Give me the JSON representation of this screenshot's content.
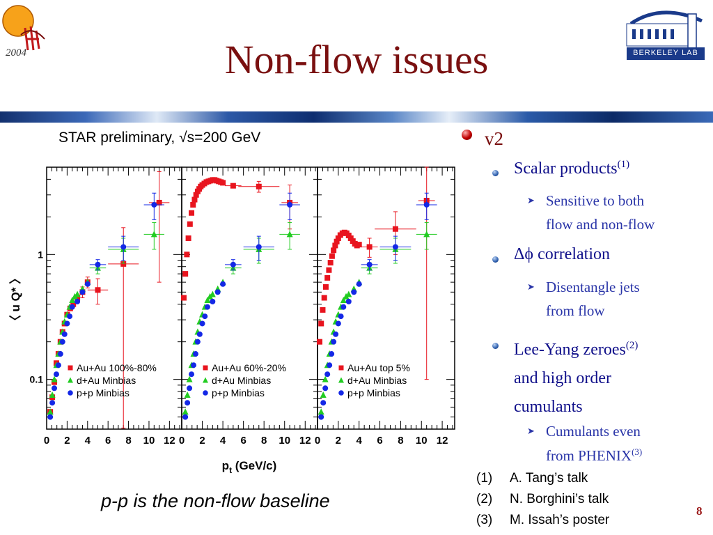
{
  "slide": {
    "title": "Non-flow issues",
    "page_number": "8",
    "logo_left": {
      "year": "2004"
    },
    "logo_right": {
      "text": "BERKELEY LAB"
    }
  },
  "chart": {
    "caption": "STAR preliminary, √s=200 GeV",
    "baseline_note": "p-p is the non-flow baseline"
  },
  "bullets": {
    "main": "v2",
    "items": [
      {
        "label": "Scalar products",
        "sup": "(1)",
        "sub": [
          "Sensitive to both",
          "flow and non-flow"
        ]
      },
      {
        "label": "Δϕ correlation",
        "sup": "",
        "sub": [
          "Disentangle jets",
          "from flow"
        ]
      },
      {
        "label_lines": [
          "Lee-Yang zeroes",
          "and high order",
          "cumulants"
        ],
        "sup": "(2)",
        "sub": [
          "Cumulants even",
          "from PHENIX"
        ],
        "sub_sup": "(3)"
      }
    ]
  },
  "references": [
    {
      "num": "(1)",
      "text": "A. Tang’s talk"
    },
    {
      "num": "(2)",
      "text": "N. Borghini’s talk"
    },
    {
      "num": "(3)",
      "text": "M. Issah’s poster"
    }
  ],
  "chart_data": {
    "type": "scatter",
    "ylabel": "〈 u Q* 〉",
    "xlabel": "p",
    "xlabel_sub": "t",
    "xlabel_unit": "(GeV/c)",
    "xlim": [
      0,
      13.2
    ],
    "ylim": [
      0.04,
      5.0
    ],
    "yscale": "log",
    "ytick_labels": [
      "0.1",
      "1"
    ],
    "ytick_values": [
      0.1,
      1
    ],
    "xtick_labels": [
      "0",
      "2",
      "4",
      "6",
      "8",
      "10",
      "12"
    ],
    "colors": {
      "auau": "#e8141e",
      "dau": "#22cc22",
      "pp": "#1428e6"
    },
    "panels": [
      {
        "series": [
          {
            "name": "Au+Au 100%-80%",
            "marker": "square",
            "color": "#e8141e",
            "x": [
              0.35,
              0.55,
              0.75,
              0.95,
              1.15,
              1.35,
              1.55,
              1.75,
              2.0,
              2.3,
              2.6,
              3.0,
              3.5,
              4.0,
              5.0,
              7.5,
              11.0
            ],
            "y": [
              0.055,
              0.072,
              0.095,
              0.135,
              0.16,
              0.2,
              0.24,
              0.28,
              0.33,
              0.37,
              0.4,
              0.45,
              0.5,
              0.6,
              0.52,
              0.84,
              2.6
            ],
            "xerr": [
              0,
              0,
              0,
              0,
              0,
              0,
              0,
              0,
              0,
              0,
              0,
              0,
              0,
              0,
              1.0,
              1.5,
              1.0
            ],
            "yerr": [
              0,
              0,
              0,
              0,
              0,
              0,
              0,
              0,
              0,
              0,
              0,
              0,
              0.05,
              0.06,
              0.12,
              0.8,
              2.0
            ]
          },
          {
            "name": "d+Au Minbias",
            "marker": "triangle",
            "color": "#22cc22",
            "x": [
              0.35,
              0.55,
              0.75,
              0.95,
              1.15,
              1.35,
              1.55,
              1.75,
              2.0,
              2.25,
              2.5,
              2.75,
              3.0,
              3.5,
              4.0,
              5.0,
              7.5,
              10.5
            ],
            "y": [
              0.055,
              0.075,
              0.1,
              0.13,
              0.16,
              0.2,
              0.24,
              0.29,
              0.33,
              0.38,
              0.43,
              0.46,
              0.48,
              0.53,
              0.6,
              0.78,
              1.1,
              1.45
            ],
            "xerr": [
              0,
              0,
              0,
              0,
              0,
              0,
              0,
              0,
              0,
              0,
              0,
              0,
              0,
              0,
              0,
              0.8,
              1.5,
              1.0
            ],
            "yerr": [
              0,
              0,
              0,
              0,
              0,
              0,
              0,
              0,
              0,
              0,
              0,
              0,
              0,
              0,
              0,
              0.08,
              0.25,
              0.35
            ]
          },
          {
            "name": "p+p Minbias",
            "marker": "circle",
            "color": "#1428e6",
            "x": [
              0.35,
              0.55,
              0.75,
              0.95,
              1.15,
              1.35,
              1.55,
              1.75,
              2.0,
              2.25,
              2.5,
              3.0,
              3.5,
              4.0,
              5.0,
              7.5,
              10.5
            ],
            "y": [
              0.05,
              0.065,
              0.085,
              0.11,
              0.13,
              0.16,
              0.2,
              0.23,
              0.28,
              0.32,
              0.38,
              0.42,
              0.5,
              0.58,
              0.83,
              1.15,
              2.5
            ],
            "xerr": [
              0,
              0,
              0,
              0,
              0,
              0,
              0,
              0,
              0,
              0,
              0,
              0,
              0,
              0,
              0.8,
              1.5,
              1.0
            ],
            "yerr": [
              0,
              0,
              0,
              0,
              0,
              0,
              0,
              0,
              0,
              0,
              0,
              0,
              0,
              0,
              0.08,
              0.25,
              0.6
            ]
          }
        ]
      },
      {
        "series": [
          {
            "name": "Au+Au 60%-20%",
            "marker": "square",
            "color": "#e8141e",
            "x": [
              0.2,
              0.35,
              0.5,
              0.65,
              0.8,
              0.95,
              1.1,
              1.25,
              1.4,
              1.55,
              1.7,
              1.85,
              2.0,
              2.2,
              2.4,
              2.6,
              2.8,
              3.0,
              3.2,
              3.4,
              3.6,
              3.8,
              4.0,
              5.0,
              7.5,
              10.5
            ],
            "y": [
              0.45,
              0.7,
              1.0,
              1.35,
              1.75,
              2.15,
              2.5,
              2.75,
              3.0,
              3.2,
              3.35,
              3.5,
              3.6,
              3.7,
              3.8,
              3.85,
              3.9,
              3.95,
              3.95,
              3.9,
              3.85,
              3.8,
              3.75,
              3.55,
              3.5,
              2.6
            ],
            "xerr": [
              0,
              0,
              0,
              0,
              0,
              0,
              0,
              0,
              0,
              0,
              0,
              0,
              0,
              0,
              0,
              0,
              0,
              0,
              0,
              0,
              0,
              0,
              0,
              0.8,
              2.0,
              0.8
            ],
            "yerr": [
              0,
              0,
              0,
              0,
              0,
              0,
              0,
              0,
              0,
              0,
              0,
              0,
              0,
              0,
              0,
              0,
              0,
              0,
              0,
              0,
              0,
              0,
              0,
              0,
              0.35,
              1.0
            ]
          },
          {
            "name": "d+Au Minbias",
            "marker": "triangle",
            "color": "#22cc22",
            "x": [
              0.35,
              0.55,
              0.75,
              0.95,
              1.15,
              1.35,
              1.55,
              1.75,
              2.0,
              2.25,
              2.5,
              2.75,
              3.0,
              3.5,
              4.0,
              5.0,
              7.5,
              10.5
            ],
            "y": [
              0.055,
              0.075,
              0.1,
              0.13,
              0.16,
              0.2,
              0.24,
              0.29,
              0.33,
              0.38,
              0.43,
              0.46,
              0.48,
              0.53,
              0.6,
              0.78,
              1.1,
              1.45
            ],
            "xerr": [
              0,
              0,
              0,
              0,
              0,
              0,
              0,
              0,
              0,
              0,
              0,
              0,
              0,
              0,
              0,
              0.8,
              1.5,
              1.0
            ],
            "yerr": [
              0,
              0,
              0,
              0,
              0,
              0,
              0,
              0,
              0,
              0,
              0,
              0,
              0,
              0,
              0,
              0.08,
              0.25,
              0.35
            ]
          },
          {
            "name": "p+p Minbias",
            "marker": "circle",
            "color": "#1428e6",
            "x": [
              0.35,
              0.55,
              0.75,
              0.95,
              1.15,
              1.35,
              1.55,
              1.75,
              2.0,
              2.25,
              2.5,
              3.0,
              3.5,
              4.0,
              5.0,
              7.5,
              10.5
            ],
            "y": [
              0.05,
              0.065,
              0.085,
              0.11,
              0.13,
              0.16,
              0.2,
              0.23,
              0.28,
              0.32,
              0.38,
              0.42,
              0.5,
              0.58,
              0.83,
              1.15,
              2.5
            ],
            "xerr": [
              0,
              0,
              0,
              0,
              0,
              0,
              0,
              0,
              0,
              0,
              0,
              0,
              0,
              0,
              0.8,
              1.5,
              1.0
            ],
            "yerr": [
              0,
              0,
              0,
              0,
              0,
              0,
              0,
              0,
              0,
              0,
              0,
              0,
              0,
              0,
              0.08,
              0.25,
              0.6
            ]
          }
        ]
      },
      {
        "series": [
          {
            "name": "Au+Au top 5%",
            "marker": "square",
            "color": "#e8141e",
            "x": [
              0.2,
              0.35,
              0.5,
              0.65,
              0.8,
              0.95,
              1.1,
              1.25,
              1.4,
              1.55,
              1.7,
              1.85,
              2.0,
              2.2,
              2.4,
              2.6,
              2.8,
              3.0,
              3.2,
              3.4,
              3.6,
              3.8,
              4.0,
              5.0,
              7.5,
              10.5
            ],
            "y": [
              0.2,
              0.28,
              0.36,
              0.45,
              0.55,
              0.65,
              0.75,
              0.86,
              0.97,
              1.08,
              1.18,
              1.27,
              1.35,
              1.43,
              1.48,
              1.5,
              1.48,
              1.42,
              1.35,
              1.28,
              1.22,
              1.18,
              1.2,
              1.15,
              1.6,
              2.7
            ],
            "xerr": [
              0,
              0,
              0,
              0,
              0,
              0,
              0,
              0,
              0,
              0,
              0,
              0,
              0,
              0,
              0,
              0,
              0,
              0,
              0,
              0,
              0,
              0,
              0,
              0.8,
              2.0,
              0.8
            ],
            "yerr": [
              0,
              0,
              0,
              0,
              0,
              0,
              0,
              0,
              0,
              0,
              0,
              0,
              0,
              0,
              0,
              0,
              0,
              0,
              0,
              0,
              0,
              0,
              0,
              0.2,
              0.6,
              2.6
            ]
          },
          {
            "name": "d+Au Minbias",
            "marker": "triangle",
            "color": "#22cc22",
            "x": [
              0.35,
              0.55,
              0.75,
              0.95,
              1.15,
              1.35,
              1.55,
              1.75,
              2.0,
              2.25,
              2.5,
              2.75,
              3.0,
              3.5,
              4.0,
              5.0,
              7.5,
              10.5
            ],
            "y": [
              0.055,
              0.075,
              0.1,
              0.13,
              0.16,
              0.2,
              0.24,
              0.29,
              0.33,
              0.38,
              0.43,
              0.46,
              0.48,
              0.53,
              0.6,
              0.78,
              1.1,
              1.45
            ],
            "xerr": [
              0,
              0,
              0,
              0,
              0,
              0,
              0,
              0,
              0,
              0,
              0,
              0,
              0,
              0,
              0,
              0.8,
              1.5,
              1.0
            ],
            "yerr": [
              0,
              0,
              0,
              0,
              0,
              0,
              0,
              0,
              0,
              0,
              0,
              0,
              0,
              0,
              0,
              0.08,
              0.25,
              0.35
            ]
          },
          {
            "name": "p+p Minbias",
            "marker": "circle",
            "color": "#1428e6",
            "x": [
              0.35,
              0.55,
              0.75,
              0.95,
              1.15,
              1.35,
              1.55,
              1.75,
              2.0,
              2.25,
              2.5,
              3.0,
              3.5,
              4.0,
              5.0,
              7.5,
              10.5
            ],
            "y": [
              0.05,
              0.065,
              0.085,
              0.11,
              0.13,
              0.16,
              0.2,
              0.23,
              0.28,
              0.32,
              0.38,
              0.42,
              0.5,
              0.58,
              0.83,
              1.15,
              2.5
            ],
            "xerr": [
              0,
              0,
              0,
              0,
              0,
              0,
              0,
              0,
              0,
              0,
              0,
              0,
              0,
              0,
              0.8,
              1.5,
              1.0
            ],
            "yerr": [
              0,
              0,
              0,
              0,
              0,
              0,
              0,
              0,
              0,
              0,
              0,
              0,
              0,
              0,
              0.08,
              0.25,
              0.6
            ]
          }
        ]
      }
    ]
  }
}
